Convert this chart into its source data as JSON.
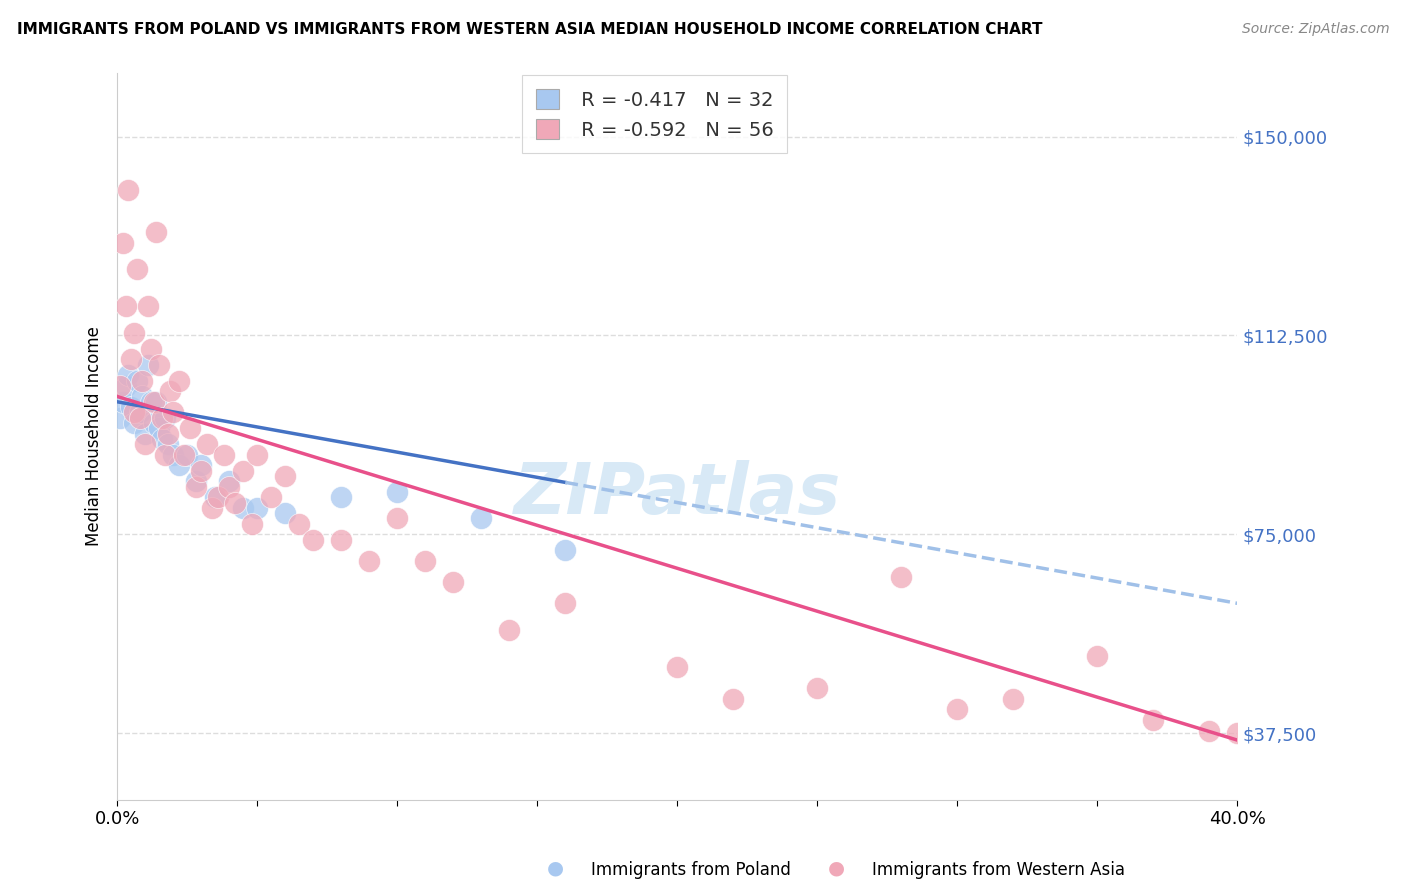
{
  "title": "IMMIGRANTS FROM POLAND VS IMMIGRANTS FROM WESTERN ASIA MEDIAN HOUSEHOLD INCOME CORRELATION CHART",
  "source": "Source: ZipAtlas.com",
  "ylabel": "Median Household Income",
  "yticks": [
    37500,
    75000,
    112500,
    150000
  ],
  "ytick_labels": [
    "$37,500",
    "$75,000",
    "$112,500",
    "$150,000"
  ],
  "xmin": 0.0,
  "xmax": 0.4,
  "ymin": 25000,
  "ymax": 162000,
  "color_poland": "#A8C8F0",
  "color_western_asia": "#F0A8B8",
  "color_poland_line": "#4472C4",
  "color_western_asia_line": "#E8508A",
  "color_dashed": "#A0C0E8",
  "background_color": "#FFFFFF",
  "grid_color": "#DDDDDD",
  "watermark": "ZIPatlas",
  "poland_x": [
    0.001,
    0.002,
    0.003,
    0.004,
    0.005,
    0.006,
    0.007,
    0.008,
    0.009,
    0.01,
    0.011,
    0.012,
    0.013,
    0.014,
    0.015,
    0.016,
    0.017,
    0.018,
    0.02,
    0.022,
    0.025,
    0.028,
    0.03,
    0.035,
    0.04,
    0.045,
    0.05,
    0.06,
    0.08,
    0.1,
    0.13,
    0.16
  ],
  "poland_y": [
    97000,
    100000,
    103000,
    105000,
    99000,
    96000,
    104000,
    98000,
    101000,
    94000,
    107000,
    100000,
    96000,
    100000,
    95000,
    93000,
    97000,
    92000,
    90000,
    88000,
    90000,
    85000,
    88000,
    82000,
    85000,
    80000,
    80000,
    79000,
    82000,
    83000,
    78000,
    72000
  ],
  "western_asia_x": [
    0.001,
    0.002,
    0.003,
    0.004,
    0.005,
    0.006,
    0.006,
    0.007,
    0.008,
    0.009,
    0.01,
    0.011,
    0.012,
    0.013,
    0.014,
    0.015,
    0.016,
    0.017,
    0.018,
    0.019,
    0.02,
    0.022,
    0.024,
    0.026,
    0.028,
    0.03,
    0.032,
    0.034,
    0.036,
    0.038,
    0.04,
    0.042,
    0.045,
    0.048,
    0.05,
    0.055,
    0.06,
    0.065,
    0.07,
    0.08,
    0.09,
    0.1,
    0.11,
    0.12,
    0.14,
    0.16,
    0.2,
    0.22,
    0.25,
    0.28,
    0.3,
    0.32,
    0.35,
    0.37,
    0.39,
    0.4
  ],
  "western_asia_y": [
    103000,
    130000,
    118000,
    140000,
    108000,
    98000,
    113000,
    125000,
    97000,
    104000,
    92000,
    118000,
    110000,
    100000,
    132000,
    107000,
    97000,
    90000,
    94000,
    102000,
    98000,
    104000,
    90000,
    95000,
    84000,
    87000,
    92000,
    80000,
    82000,
    90000,
    84000,
    81000,
    87000,
    77000,
    90000,
    82000,
    86000,
    77000,
    74000,
    74000,
    70000,
    78000,
    70000,
    66000,
    57000,
    62000,
    50000,
    44000,
    46000,
    67000,
    42000,
    44000,
    52000,
    40000,
    38000,
    37500
  ]
}
